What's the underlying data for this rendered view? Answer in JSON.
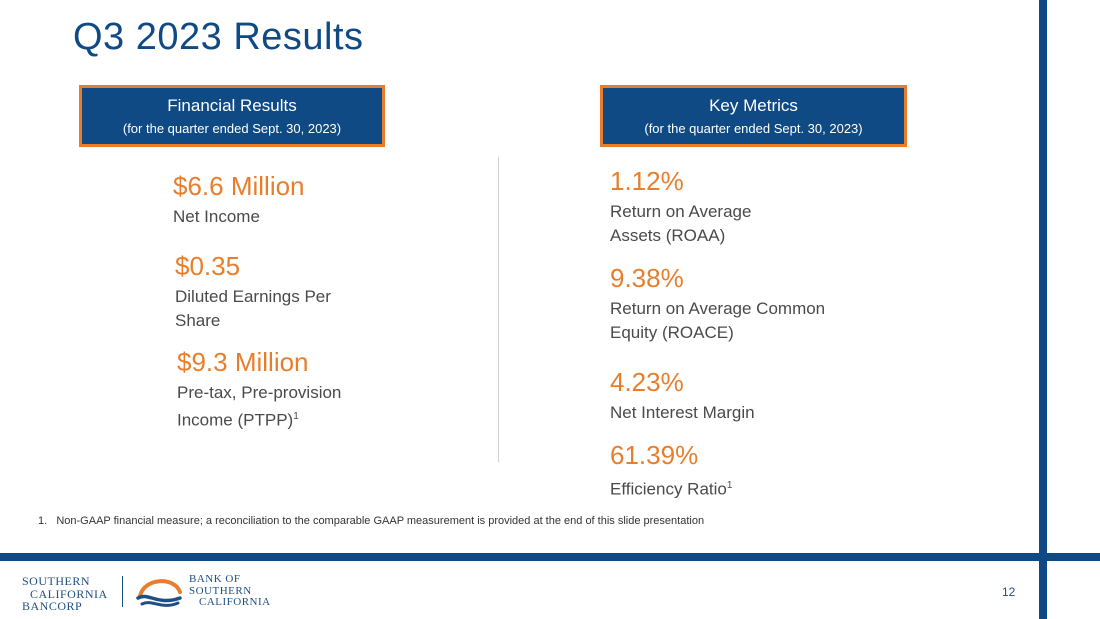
{
  "slide": {
    "title": "Q3 2023 Results",
    "page_number": "12"
  },
  "financial_results": {
    "header": "Financial Results",
    "subheader": "(for the quarter ended Sept. 30, 2023)",
    "items": [
      {
        "value": "$6.6 Million",
        "label": "Net Income"
      },
      {
        "value": "$0.35",
        "label": "Diluted Earnings Per Share"
      },
      {
        "value": "$9.3 Million",
        "label": "Pre-tax, Pre-provision Income (PTPP)",
        "footnote_ref": "1"
      }
    ]
  },
  "key_metrics": {
    "header": "Key Metrics",
    "subheader": "(for the quarter ended Sept. 30, 2023)",
    "items": [
      {
        "value": "1.12%",
        "label_line1": "Return on Average",
        "label_line2": "Assets (ROAA)"
      },
      {
        "value": "9.38%",
        "label_line1": "Return on Average Common",
        "label_line2": "Equity (ROACE)"
      },
      {
        "value": "4.23%",
        "label_line1": "Net Interest Margin"
      },
      {
        "value": "61.39%",
        "label_line1": "Efficiency Ratio",
        "footnote_ref": "1"
      }
    ]
  },
  "footnote": "1.   Non-GAAP financial measure; a reconciliation to the comparable GAAP measurement is provided at the end of this slide presentation",
  "logos": {
    "left": {
      "line1": "Southern",
      "line2": "California",
      "line3": "Bancorp"
    },
    "right": {
      "line1": "Bank of",
      "line2": "Southern",
      "line3": "California"
    }
  },
  "colors": {
    "brand_blue": "#0f4a85",
    "accent_orange": "#e87e2c",
    "label_gray": "#4a4a4a"
  }
}
